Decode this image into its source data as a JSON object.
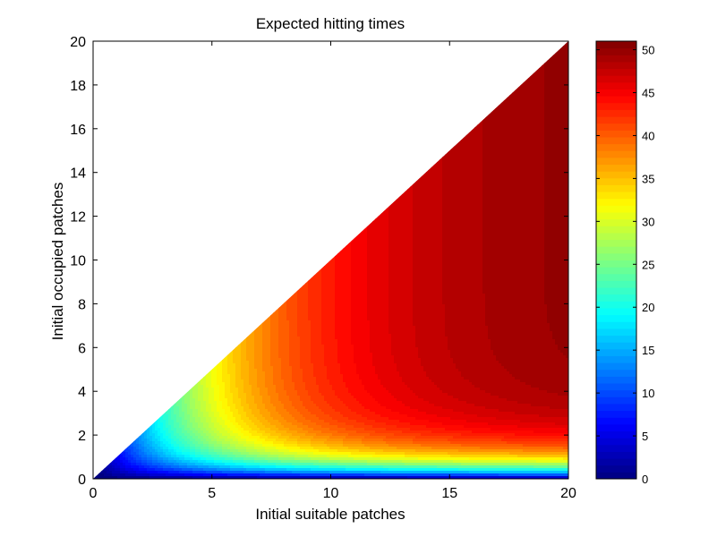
{
  "chart_data": {
    "type": "heatmap",
    "style": "filled-contour",
    "title": "Expected hitting times",
    "xlabel": "Initial suitable patches",
    "ylabel": "Initial occupied patches",
    "xlim": [
      0,
      20
    ],
    "ylim": [
      0,
      20
    ],
    "xticks": [
      0,
      5,
      10,
      15,
      20
    ],
    "yticks": [
      0,
      2,
      4,
      6,
      8,
      10,
      12,
      14,
      16,
      18,
      20
    ],
    "domain": "triangle 0 <= occupied <= suitable <= 20",
    "colormap": "jet",
    "colorbar": {
      "range": [
        0,
        51
      ],
      "ticks": [
        0,
        5,
        10,
        15,
        20,
        25,
        30,
        35,
        40,
        45,
        50
      ],
      "placement": "right"
    },
    "description_points": [
      {
        "x": 20,
        "y": 0.25,
        "value": 3
      },
      {
        "x": 20,
        "y": 0.5,
        "value": 14
      },
      {
        "x": 20,
        "y": 1,
        "value": 38
      },
      {
        "x": 20,
        "y": 4,
        "value": 47
      },
      {
        "x": 20,
        "y": 10,
        "value": 50
      },
      {
        "x": 20,
        "y": 20,
        "value": 51
      },
      {
        "x": 5,
        "y": 2,
        "value": 31
      },
      {
        "x": 5,
        "y": 4.5,
        "value": 32
      },
      {
        "x": 2,
        "y": 1,
        "value": 23
      },
      {
        "x": 10,
        "y": 10,
        "value": 41
      },
      {
        "x": 15,
        "y": 15,
        "value": 47
      }
    ]
  }
}
